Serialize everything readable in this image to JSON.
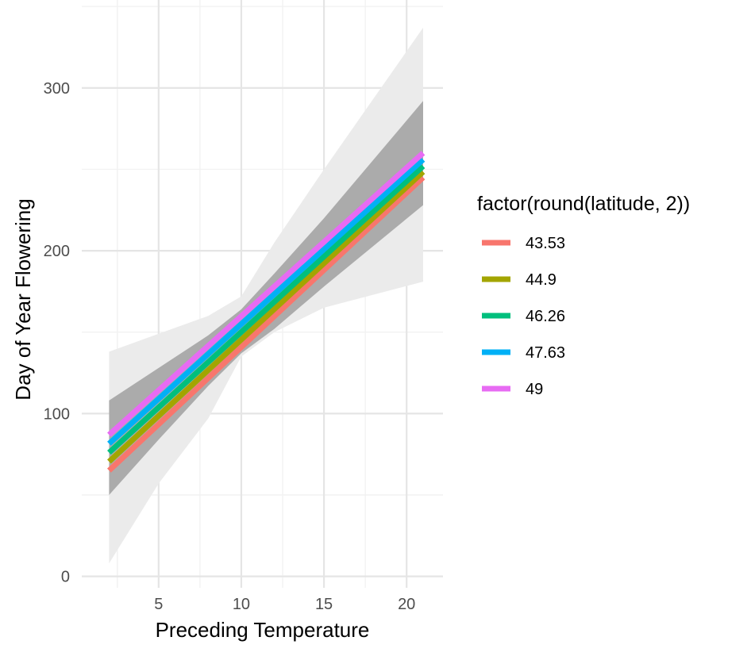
{
  "chart_data": {
    "type": "line",
    "xlabel": "Preceding Temperature",
    "ylabel": "Day of Year Flowering",
    "xlim": [
      0.35,
      22.2
    ],
    "ylim": [
      -7,
      354
    ],
    "x_ticks": [
      5,
      10,
      15,
      20
    ],
    "x_tick_labels": [
      "5",
      "10",
      "15",
      "20"
    ],
    "y_ticks": [
      0,
      100,
      200,
      300
    ],
    "y_tick_labels": [
      "0",
      "100",
      "200",
      "300"
    ],
    "grid": true,
    "legend": {
      "title": "factor(round(latitude, 2))",
      "position": "right"
    },
    "series": [
      {
        "name": "43.53",
        "color": "#F8766D",
        "x": [
          2,
          21
        ],
        "y": [
          65,
          245
        ]
      },
      {
        "name": "44.9",
        "color": "#A3A500",
        "x": [
          2,
          21
        ],
        "y": [
          70.5,
          248.5
        ]
      },
      {
        "name": "46.26",
        "color": "#00BF7D",
        "x": [
          2,
          21
        ],
        "y": [
          76,
          252
        ]
      },
      {
        "name": "47.63",
        "color": "#00B0F6",
        "x": [
          2,
          21
        ],
        "y": [
          81.5,
          256
        ]
      },
      {
        "name": "49",
        "color": "#E76BF3",
        "x": [
          2,
          21
        ],
        "y": [
          87,
          260
        ]
      }
    ],
    "bands": [
      {
        "color": "#EBEBEB",
        "x": [
          2,
          5,
          8,
          10,
          12,
          15,
          21
        ],
        "upper": [
          138,
          149,
          160,
          172,
          205,
          250,
          337
        ],
        "lower": [
          8,
          57,
          97,
          135,
          150,
          165,
          181
        ]
      },
      {
        "color": "#ABABAB",
        "x": [
          2,
          5,
          8,
          10,
          12,
          15,
          21
        ],
        "upper": [
          108,
          128,
          148,
          164,
          186,
          220,
          292
        ],
        "lower": [
          50,
          84,
          117,
          137,
          152,
          178,
          228
        ]
      }
    ]
  }
}
